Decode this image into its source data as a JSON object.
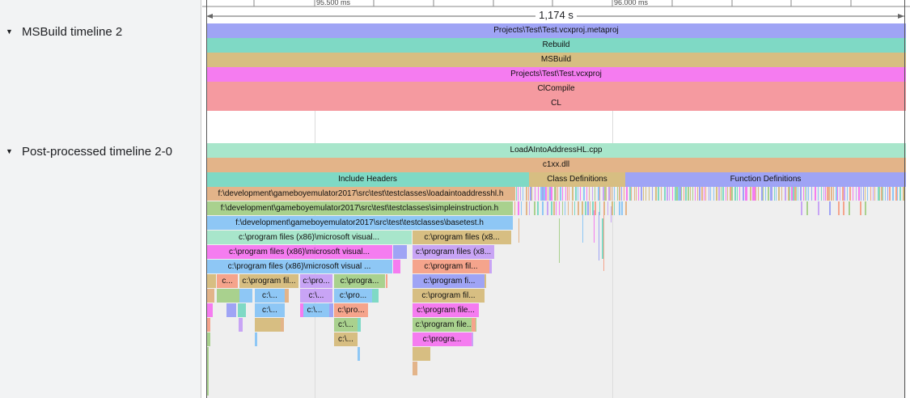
{
  "sidebar": {
    "tracks": [
      {
        "label": "MSBuild timeline 2"
      },
      {
        "label": "Post-processed timeline 2-0"
      }
    ]
  },
  "ruler": {
    "ticks": [
      {
        "label": "95.500 ms"
      },
      {
        "label": "96.000 ms"
      }
    ],
    "selection_duration": "1,174 s"
  },
  "msbuild_bars": [
    {
      "label": "Projects\\Test\\Test.vcxproj.metaproj",
      "color": "#9fa4f5"
    },
    {
      "label": "Rebuild",
      "color": "#7fd9c5"
    },
    {
      "label": "MSBuild",
      "color": "#d7be82"
    },
    {
      "label": "Projects\\Test\\Test.vcxproj",
      "color": "#f57cf0"
    },
    {
      "label": "ClCompile",
      "color": "#f59aa0"
    },
    {
      "label": "CL",
      "color": "#f59aa0"
    }
  ],
  "post_bars": [
    {
      "label": "LoadAIntoAddressHL.cpp",
      "color": "#a8e6cb"
    },
    {
      "label": "c1xx.dll",
      "color": "#e3b489"
    },
    {
      "label": "Include Headers",
      "color": "#7fd9c5"
    },
    {
      "label": "Class Definitions",
      "color": "#d7be82"
    },
    {
      "label": "Function Definitions",
      "color": "#9fa4f5"
    },
    {
      "label": "f:\\development\\gameboyemulator2017\\src\\test\\testclasses\\loadaintoaddresshl.h",
      "color": "#e3b489"
    },
    {
      "label": "f:\\development\\gameboyemulator2017\\src\\test\\testclasses\\simpleinstruction.h",
      "color": "#a9d18e"
    },
    {
      "label": "f:\\development\\gameboyemulator2017\\src\\test\\testclasses\\basetest.h",
      "color": "#8ec7f5"
    },
    {
      "label": "c:\\program files (x86)\\microsoft visual...",
      "color": "#a8e6cb"
    },
    {
      "label": "c:\\program files (x8...",
      "color": "#d7be82"
    },
    {
      "label": "c:\\program files (x86)\\microsoft visual...",
      "color": "#f57cf0"
    },
    {
      "label": "c:\\program files (x8...",
      "color": "#c8a4f5"
    },
    {
      "label": "c:\\program files (x86)\\microsoft visual ...",
      "color": "#8ec7f5"
    },
    {
      "label": "c:\\program fil...",
      "color": "#f5a48c"
    },
    {
      "label": "c...",
      "color": "#f5a48c"
    },
    {
      "label": "c:\\program fil...",
      "color": "#d7be82"
    },
    {
      "label": "c:\\pro...",
      "color": "#c8a4f5"
    },
    {
      "label": "c:\\progra...",
      "color": "#a9d18e"
    },
    {
      "label": "c:\\program fi...",
      "color": "#9fa4f5"
    },
    {
      "label": "c:\\...",
      "color": "#8ec7f5"
    },
    {
      "label": "c:\\...",
      "color": "#c8a4f5"
    },
    {
      "label": "c:\\pro...",
      "color": "#8ec7f5"
    },
    {
      "label": "c:\\program fil...",
      "color": "#d7be82"
    },
    {
      "label": "c:\\...",
      "color": "#8ec7f5"
    },
    {
      "label": "c:\\...",
      "color": "#8ec7f5"
    },
    {
      "label": "c:\\pro...",
      "color": "#f5a48c"
    },
    {
      "label": "c:\\program file...",
      "color": "#f57cf0"
    },
    {
      "label": "c:\\...",
      "color": "#a9d18e"
    },
    {
      "label": "c:\\program file...",
      "color": "#a9d18e"
    },
    {
      "label": "c:\\...",
      "color": "#d7be82"
    },
    {
      "label": "c:\\progra...",
      "color": "#f57cf0"
    }
  ]
}
